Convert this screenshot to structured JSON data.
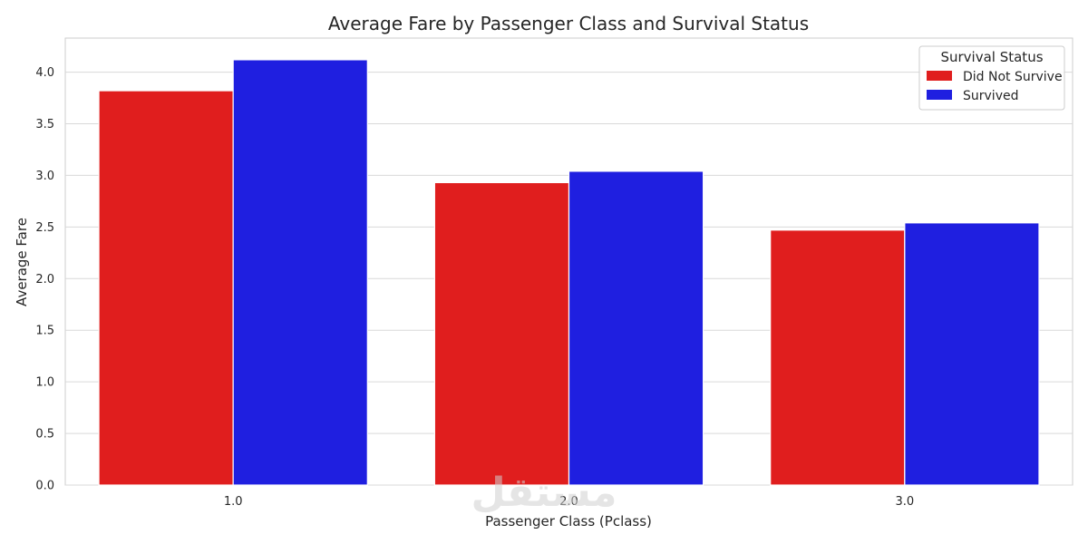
{
  "chart_data": {
    "type": "bar",
    "title": "Average Fare by Passenger Class and Survival Status",
    "xlabel": "Passenger Class (Pclass)",
    "ylabel": "Average Fare",
    "categories": [
      "1.0",
      "2.0",
      "3.0"
    ],
    "series": [
      {
        "name": "Did Not Survive",
        "color": "#e01e1e",
        "values": [
          3.82,
          2.93,
          2.47
        ]
      },
      {
        "name": "Survived",
        "color": "#1f1fe0",
        "values": [
          4.12,
          3.04,
          2.54
        ]
      }
    ],
    "ylim": [
      0,
      4.33
    ],
    "yticks": [
      "0.0",
      "0.5",
      "1.0",
      "1.5",
      "2.0",
      "2.5",
      "3.0",
      "3.5",
      "4.0"
    ],
    "grid": true,
    "legend": {
      "title": "Survival Status",
      "placement": "top-right"
    }
  },
  "watermark": {
    "text": "مستقل"
  }
}
